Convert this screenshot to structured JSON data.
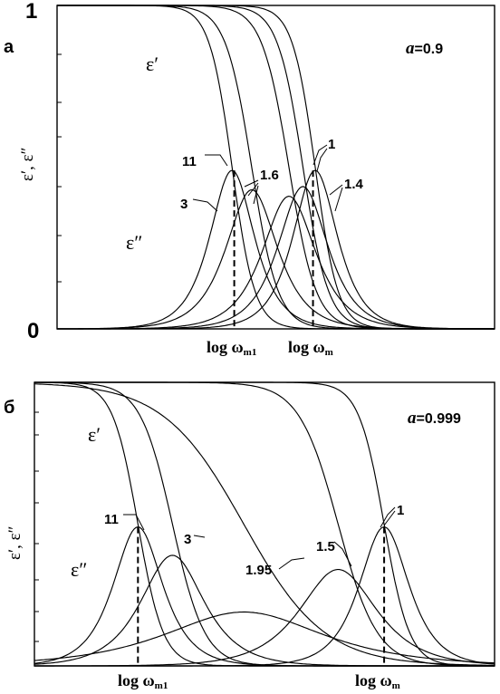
{
  "panels": [
    {
      "letter": "a",
      "ylabel": "ε′, ε″",
      "y_tick_labels": [
        "1",
        "0"
      ],
      "x_tick_labels": [
        "log ωm1",
        "log ωm"
      ],
      "x_tick_main": [
        "log ω",
        "log ω"
      ],
      "x_tick_sub": [
        "m1",
        "m"
      ],
      "param_label": "a",
      "param_value": "=0.9",
      "curve_labels": [
        "ε′",
        "ε″"
      ],
      "series_labels": [
        "11",
        "3",
        "1.6",
        "1",
        "1.4"
      ]
    },
    {
      "letter": "б",
      "ylabel": "ε′, ε″",
      "y_tick_labels": [],
      "x_tick_labels": [
        "log ωm1",
        "log ωm"
      ],
      "x_tick_main": [
        "log ω",
        "log ω"
      ],
      "x_tick_sub": [
        "m1",
        "m"
      ],
      "param_label": "a",
      "param_value": "=0.999",
      "curve_labels": [
        "ε′",
        "ε″"
      ],
      "series_labels": [
        "11",
        "3",
        "1.95",
        "1.5",
        "1"
      ]
    }
  ],
  "chart_data": [
    {
      "type": "line",
      "title": "",
      "xlabel": "",
      "ylabel": "ε′, ε″",
      "ylim": [
        0,
        1
      ],
      "x_range": [
        -5,
        5
      ],
      "a": 0.9,
      "x_markers": [
        -0.95,
        0.85
      ],
      "series": [
        {
          "label": "11",
          "center": -1.0,
          "width": 0.52,
          "peak": 0.49
        },
        {
          "label": "3",
          "center": -0.55,
          "width": 0.6,
          "peak": 0.43
        },
        {
          "label": "1.6",
          "center": 0.3,
          "width": 0.62,
          "peak": 0.41
        },
        {
          "label": "1.4",
          "center": 0.62,
          "width": 0.58,
          "peak": 0.44
        },
        {
          "label": "1",
          "center": 0.9,
          "width": 0.52,
          "peak": 0.49
        }
      ]
    },
    {
      "type": "line",
      "title": "",
      "xlabel": "",
      "ylabel": "ε′, ε″",
      "ylim": [
        0,
        1
      ],
      "x_range": [
        -5,
        5
      ],
      "a": 0.999,
      "x_markers": [
        -2.75,
        2.6
      ],
      "series": [
        {
          "label": "11",
          "center": -2.75,
          "width": 0.55,
          "peak": 0.49
        },
        {
          "label": "3",
          "center": -2.0,
          "width": 0.7,
          "peak": 0.39
        },
        {
          "label": "1.95",
          "center": -0.45,
          "width": 1.75,
          "peak": 0.19
        },
        {
          "label": "1.5",
          "center": 1.6,
          "width": 0.85,
          "peak": 0.34
        },
        {
          "label": "1",
          "center": 2.6,
          "width": 0.55,
          "peak": 0.49
        }
      ]
    }
  ]
}
